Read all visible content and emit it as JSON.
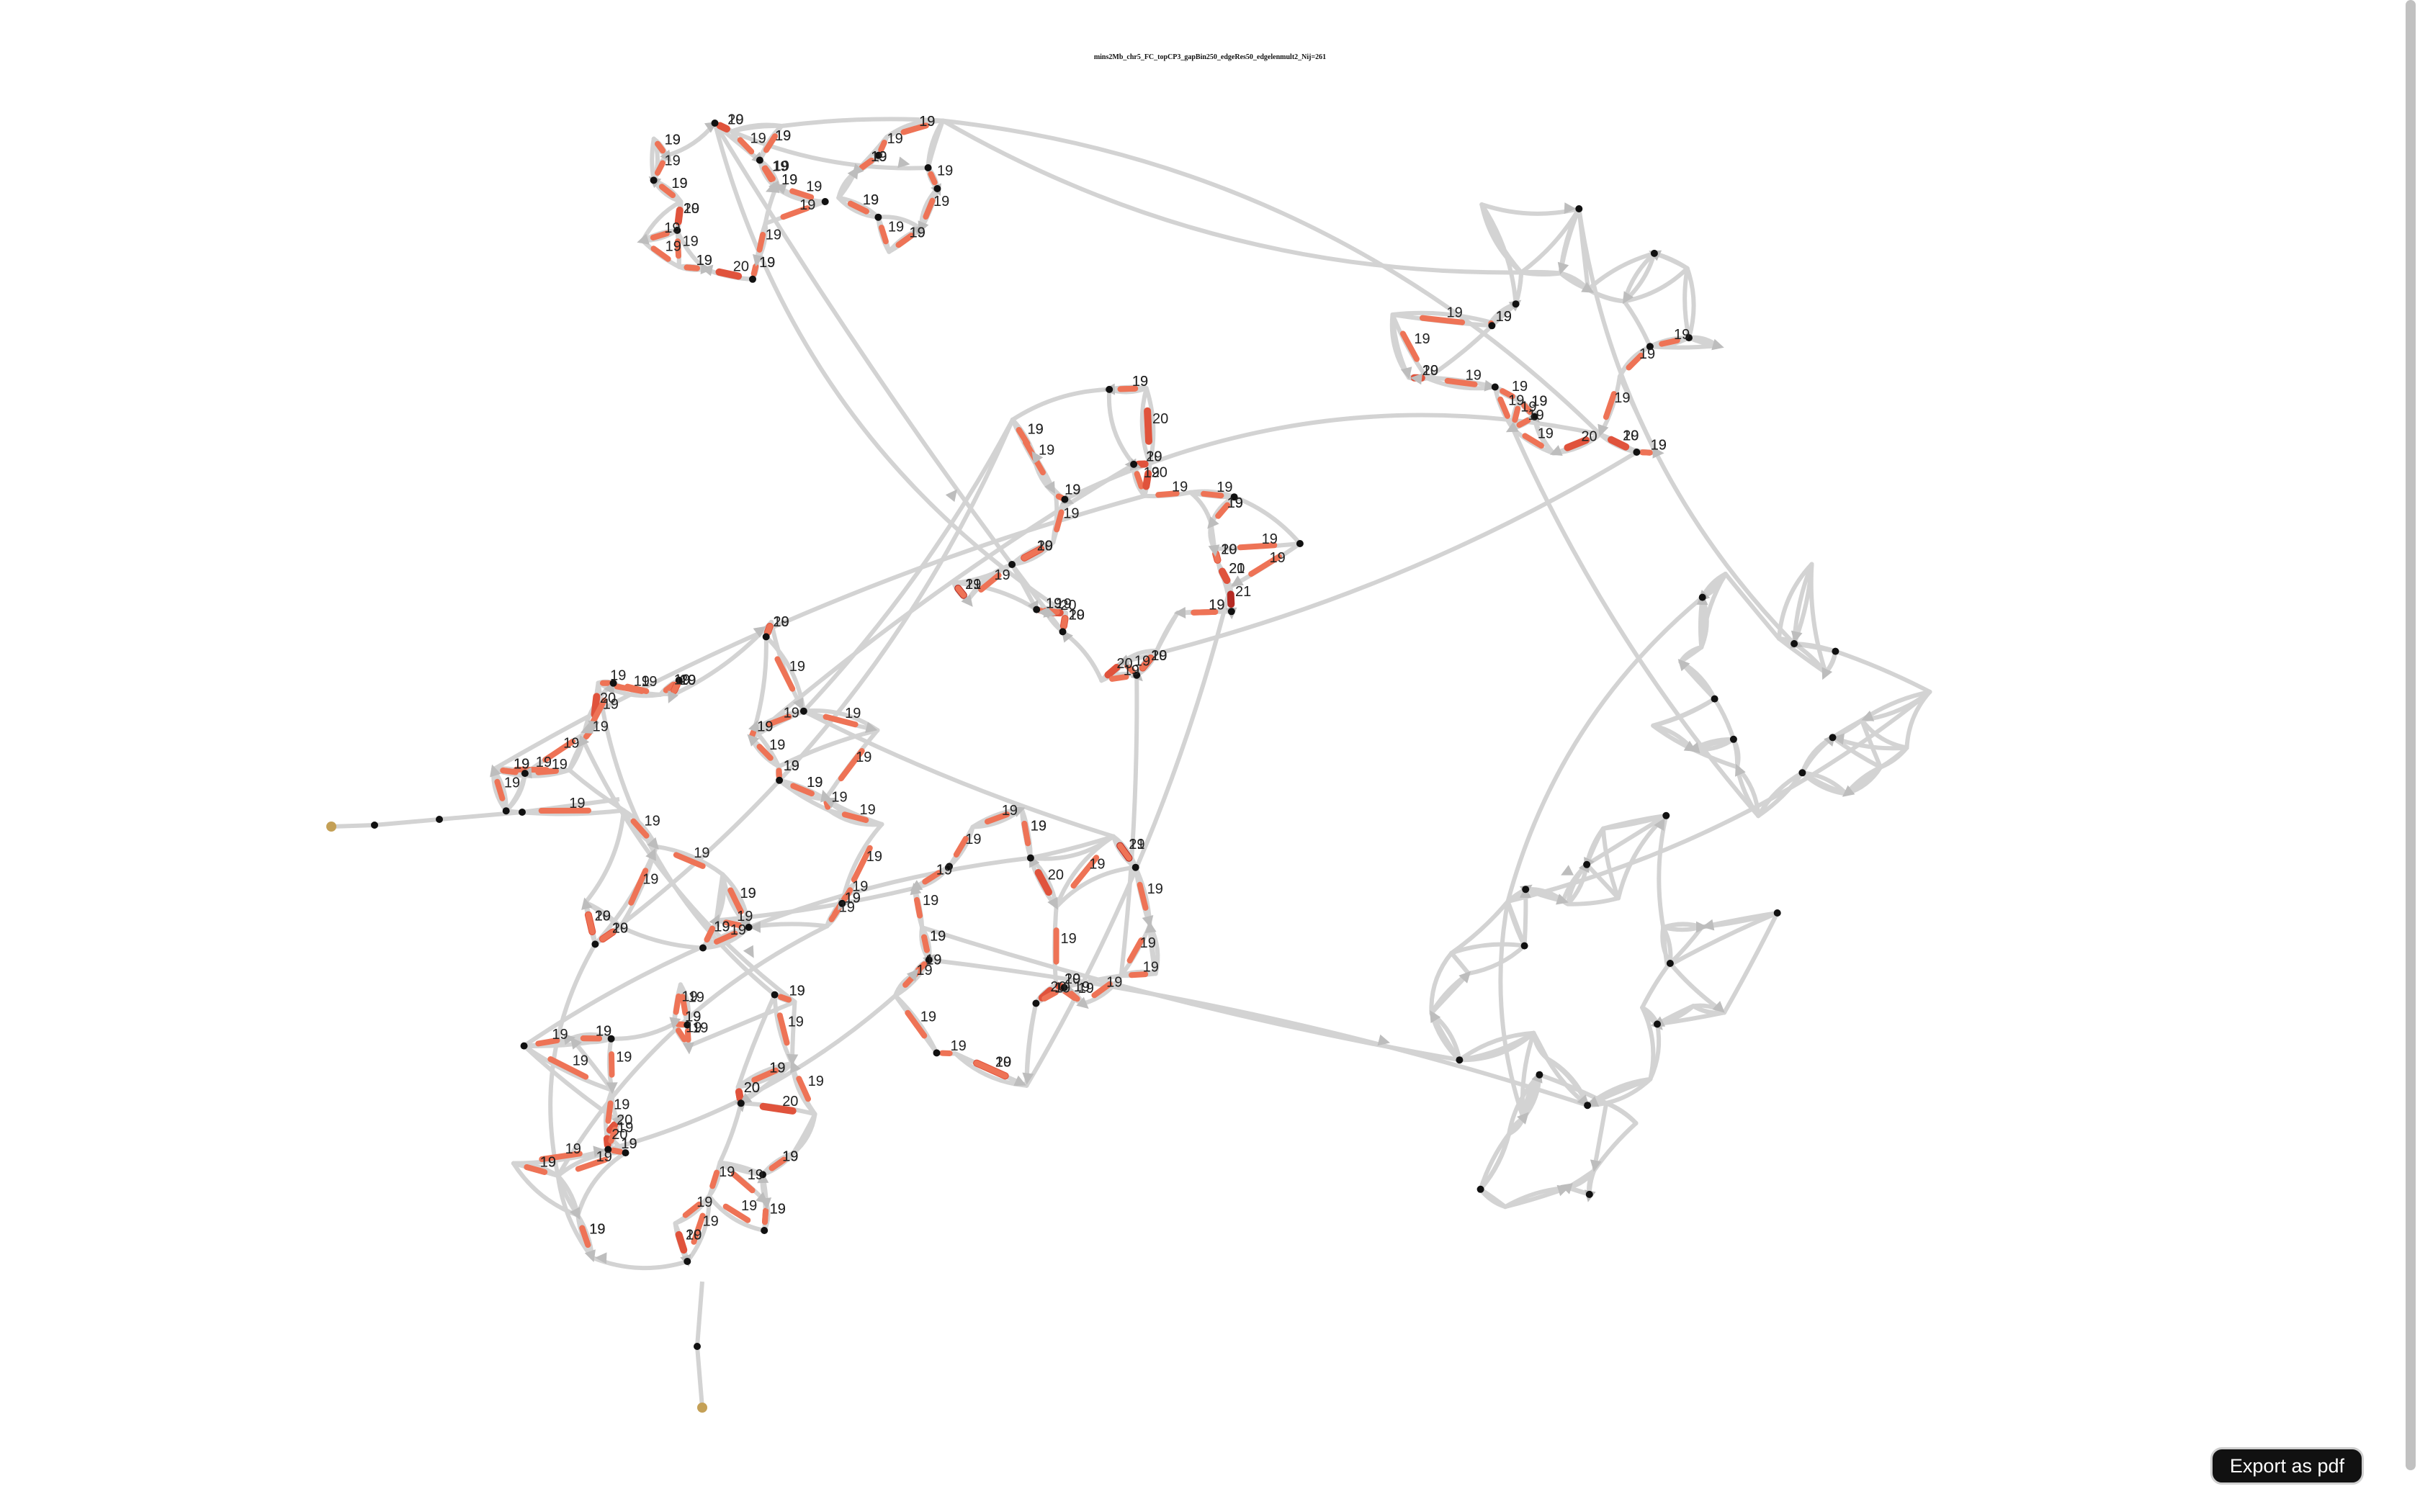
{
  "graph": {
    "title": "mins2Mb_chr5_FC_topCP3_gapBin250_edgeRes50_edgelenmult2_Nij=261",
    "colors": {
      "edge_default": "#d3d3d3",
      "edge_light": "#ee7356",
      "edge_medium": "#e0533c",
      "edge_strong": "#b52a23",
      "node": "#111111",
      "terminal_node": "#c4a056"
    },
    "edge_labels": [
      "19",
      "19",
      "19",
      "19",
      "19",
      "20",
      "19",
      "19",
      "19",
      "19",
      "19",
      "19",
      "20",
      "19",
      "19",
      "19",
      "19",
      "19",
      "19",
      "20",
      "19",
      "19",
      "19",
      "19",
      "19",
      "19",
      "19",
      "19",
      "19",
      "19",
      "19",
      "19",
      "19",
      "19",
      "19",
      "19",
      "19",
      "19",
      "19",
      "19",
      "19",
      "20",
      "21",
      "20",
      "21",
      "19",
      "19",
      "19",
      "20",
      "19",
      "19",
      "20",
      "19",
      "20",
      "19",
      "20",
      "19",
      "19",
      "19",
      "21",
      "19",
      "19",
      "19",
      "20",
      "19",
      "19",
      "19",
      "19",
      "19",
      "19",
      "19",
      "19",
      "19",
      "20",
      "19",
      "20",
      "19",
      "20",
      "19",
      "19",
      "19",
      "19",
      "19",
      "19",
      "19",
      "19",
      "19",
      "19",
      "19",
      "19",
      "19",
      "19",
      "19",
      "19",
      "19",
      "19",
      "19",
      "19",
      "19",
      "20",
      "19",
      "19",
      "19",
      "20",
      "19",
      "19",
      "19",
      "19",
      "19",
      "19",
      "19",
      "19",
      "19",
      "20",
      "19",
      "19",
      "19",
      "19",
      "19",
      "19",
      "20",
      "19",
      "19",
      "20",
      "19",
      "19",
      "19",
      "19",
      "19",
      "19",
      "19",
      "19",
      "19",
      "19",
      "19",
      "19",
      "19",
      "19",
      "19",
      "19",
      "19",
      "19",
      "19",
      "19",
      "19",
      "19",
      "20",
      "19",
      "19",
      "19",
      "19",
      "19",
      "19",
      "19",
      "19",
      "19",
      "19",
      "20",
      "20",
      "19",
      "19",
      "19",
      "19",
      "19",
      "19",
      "19",
      "19",
      "19",
      "19",
      "19",
      "19",
      "19",
      "19",
      "19",
      "19",
      "20",
      "19",
      "19",
      "20",
      "20",
      "19",
      "19",
      "19",
      "19",
      "19",
      "20",
      "20",
      "19",
      "19",
      "20",
      "19",
      "19",
      "19",
      "19",
      "19",
      "19",
      "19",
      "19",
      "19",
      "19",
      "19",
      "19",
      "19",
      "19",
      "19",
      "20",
      "21",
      "19",
      "19",
      "19",
      "19",
      "19",
      "19",
      "19",
      "19",
      "19",
      "19",
      "19",
      "19",
      "20",
      "20",
      "19",
      "19",
      "19",
      "19",
      "19",
      "19",
      "19",
      "19",
      "20",
      "19",
      "19",
      "19",
      "19",
      "19"
    ]
  },
  "export": {
    "label": "Export as pdf"
  }
}
